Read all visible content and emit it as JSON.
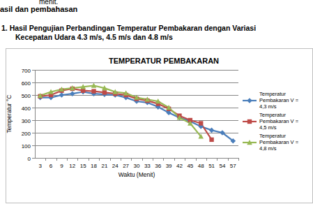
{
  "document": {
    "lines": [
      "menit.",
      "asil dan pembahasan",
      "1.  Hasil Pengujian Perbandingan Temperatur Pembakaran dengan Variasi",
      "Kecepatan Udara 4.3 m/s, 4.5 m/s dan 4.8 m/s"
    ]
  },
  "chart_data": {
    "type": "line",
    "title": "TEMPERATUR PEMBAKARAN",
    "x_label": "Waktu (Menit)",
    "y_label": "Temperatur °C",
    "categories": [
      "3",
      "6",
      "9",
      "12",
      "15",
      "18",
      "21",
      "24",
      "27",
      "30",
      "33",
      "36",
      "39",
      "42",
      "45",
      "48",
      "51",
      "54",
      "57"
    ],
    "series": [
      {
        "name": "Temperatur Pembakaran V = 4,3 m/s",
        "color": "#4a7ebb",
        "marker": "diamond",
        "values": [
          480,
          480,
          500,
          510,
          525,
          510,
          505,
          500,
          480,
          450,
          440,
          405,
          360,
          320,
          290,
          250,
          220,
          200,
          135
        ]
      },
      {
        "name": "Temperatur Pembakaran V = 4,5 m/s",
        "color": "#be4b48",
        "marker": "square",
        "values": [
          490,
          500,
          535,
          550,
          535,
          530,
          520,
          510,
          500,
          470,
          455,
          430,
          390,
          335,
          300,
          275,
          145,
          null,
          null
        ]
      },
      {
        "name": "Temperatur Pembakaran V = 4,8 m/s",
        "color": "#98b954",
        "marker": "triangle",
        "values": [
          495,
          525,
          545,
          555,
          565,
          575,
          555,
          525,
          515,
          480,
          465,
          450,
          400,
          320,
          275,
          170,
          null,
          null,
          null
        ]
      }
    ],
    "ylim": [
      0,
      700
    ],
    "yticks": [
      0,
      100,
      200,
      300,
      400,
      500,
      600,
      700
    ],
    "grid": true,
    "legend": "right"
  }
}
